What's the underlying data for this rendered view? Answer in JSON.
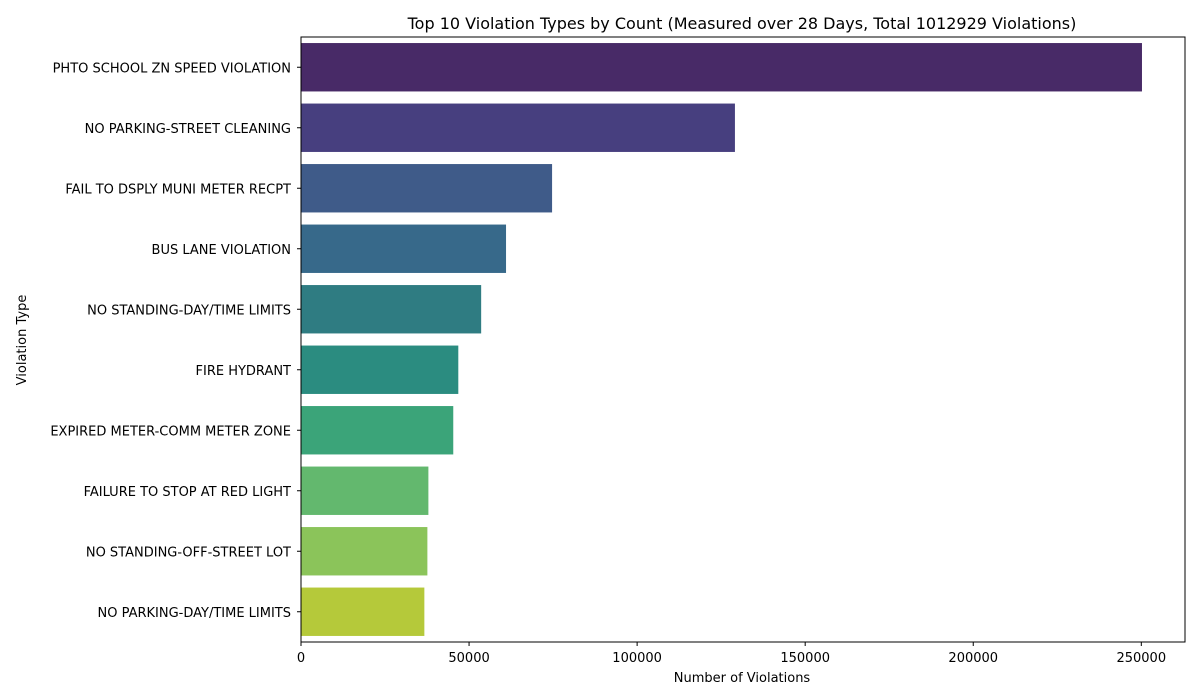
{
  "chart_data": {
    "type": "bar",
    "orientation": "horizontal",
    "title": "Top 10 Violation Types by Count (Measured over 28 Days, Total 1012929 Violations)",
    "xlabel": "Number of Violations",
    "ylabel": "Violation Type",
    "categories": [
      "PHTO SCHOOL ZN SPEED VIOLATION",
      "NO PARKING-STREET CLEANING",
      "FAIL TO DSPLY MUNI METER RECPT",
      "BUS LANE VIOLATION",
      "NO STANDING-DAY/TIME LIMITS",
      "FIRE HYDRANT",
      "EXPIRED METER-COMM METER ZONE",
      "FAILURE TO STOP AT RED LIGHT",
      "NO STANDING-OFF-STREET LOT",
      "NO PARKING-DAY/TIME LIMITS"
    ],
    "values": [
      250200,
      129100,
      74700,
      61000,
      53600,
      46800,
      45300,
      37900,
      37600,
      36700
    ],
    "xlim": [
      0,
      263000
    ],
    "xticks": [
      0,
      50000,
      100000,
      150000,
      200000,
      250000
    ],
    "xtick_labels": [
      "0",
      "50000",
      "100000",
      "150000",
      "200000",
      "250000"
    ],
    "colors": [
      "#482a67",
      "#473f7f",
      "#3f5b89",
      "#37698a",
      "#2f7c82",
      "#2b8c80",
      "#3ba479",
      "#63b86e",
      "#8bc45a",
      "#b5c93a"
    ],
    "grid": false,
    "legend": "none"
  }
}
